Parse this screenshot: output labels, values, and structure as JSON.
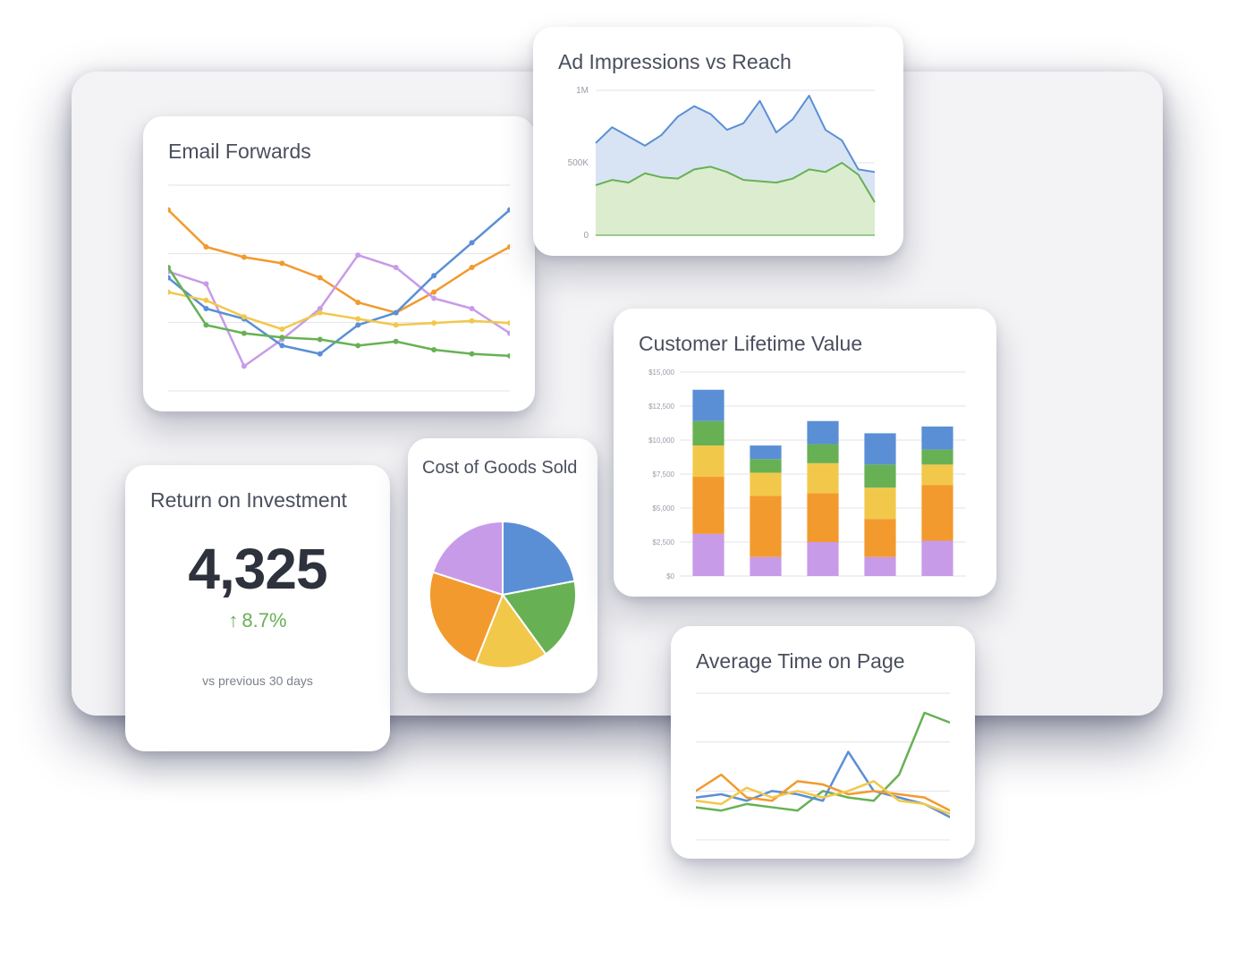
{
  "palette": {
    "blue": "#5a8fd6",
    "green": "#67b154",
    "yellow": "#f2c84b",
    "orange": "#f29a2e",
    "purple": "#c89be8",
    "text": "#4a4f5e",
    "grid": "#e3e3e8",
    "card_bg": "#ffffff",
    "panel_bg": "#f3f3f5"
  },
  "email_forwards": {
    "title": "Email Forwards",
    "type": "line",
    "grid_rows": 4,
    "line_width": 2.5,
    "marker_radius": 3,
    "series": [
      {
        "color": "#f29a2e",
        "values": [
          88,
          70,
          65,
          62,
          55,
          43,
          38,
          48,
          60,
          70
        ]
      },
      {
        "color": "#c89be8",
        "values": [
          58,
          52,
          12,
          25,
          40,
          66,
          60,
          45,
          40,
          28
        ]
      },
      {
        "color": "#5a8fd6",
        "values": [
          55,
          40,
          35,
          22,
          18,
          32,
          38,
          56,
          72,
          88
        ]
      },
      {
        "color": "#f2c84b",
        "values": [
          48,
          44,
          36,
          30,
          38,
          35,
          32,
          33,
          34,
          33
        ]
      },
      {
        "color": "#67b154",
        "values": [
          60,
          32,
          28,
          26,
          25,
          22,
          24,
          20,
          18,
          17
        ]
      }
    ]
  },
  "ad_impressions": {
    "title": "Ad Impressions vs Reach",
    "type": "area",
    "y_ticks": [
      "0",
      "500K",
      "1M"
    ],
    "y_max": 1200000,
    "grid_rows": 3,
    "line_width": 2,
    "series": [
      {
        "color": "#5a8fd6",
        "fill": "#d8e4f3",
        "values": [
          700,
          820,
          750,
          680,
          760,
          900,
          980,
          920,
          800,
          850,
          1020,
          780,
          880,
          1060,
          800,
          720,
          500,
          480
        ]
      },
      {
        "color": "#67b154",
        "fill": "#dceccf",
        "values": [
          380,
          420,
          400,
          470,
          440,
          430,
          500,
          520,
          480,
          420,
          410,
          400,
          430,
          500,
          480,
          550,
          460,
          250
        ]
      }
    ]
  },
  "roi": {
    "title": "Return on Investment",
    "value": "4,325",
    "delta_value": "8.7%",
    "delta_direction": "up",
    "delta_color": "#67b154",
    "caption": "vs previous 30 days"
  },
  "cogs": {
    "title": "Cost of Goods Sold",
    "type": "pie",
    "slices": [
      {
        "color": "#5a8fd6",
        "value": 22
      },
      {
        "color": "#67b154",
        "value": 18
      },
      {
        "color": "#f2c84b",
        "value": 16
      },
      {
        "color": "#f29a2e",
        "value": 24
      },
      {
        "color": "#c89be8",
        "value": 20
      }
    ]
  },
  "clv": {
    "title": "Customer Lifetime Value",
    "type": "stacked-bar",
    "y_ticks": [
      "$0",
      "$2,500",
      "$5,000",
      "$7,500",
      "$10,000",
      "$12,500",
      "$15,000"
    ],
    "y_max": 15000,
    "segment_colors": [
      "#c89be8",
      "#f29a2e",
      "#f2c84b",
      "#67b154",
      "#5a8fd6"
    ],
    "bars": [
      [
        3100,
        4200,
        2300,
        1800,
        2300
      ],
      [
        1400,
        4500,
        1700,
        1000,
        1000
      ],
      [
        2500,
        3600,
        2200,
        1400,
        1700
      ],
      [
        1400,
        2800,
        2300,
        1700,
        2300
      ],
      [
        2600,
        4100,
        1500,
        1100,
        1700
      ]
    ],
    "bar_width_ratio": 0.55
  },
  "avg_time": {
    "title": "Average Time on Page",
    "type": "line",
    "grid_rows": 4,
    "line_width": 2.5,
    "series": [
      {
        "color": "#67b154",
        "values": [
          20,
          18,
          22,
          20,
          18,
          30,
          26,
          24,
          40,
          78,
          72
        ]
      },
      {
        "color": "#5a8fd6",
        "values": [
          26,
          28,
          24,
          30,
          28,
          24,
          54,
          30,
          26,
          22,
          14
        ]
      },
      {
        "color": "#f29a2e",
        "values": [
          30,
          40,
          26,
          24,
          36,
          34,
          28,
          30,
          28,
          26,
          18
        ]
      },
      {
        "color": "#f2c84b",
        "values": [
          24,
          22,
          32,
          26,
          30,
          26,
          30,
          36,
          24,
          22,
          16
        ]
      }
    ]
  }
}
